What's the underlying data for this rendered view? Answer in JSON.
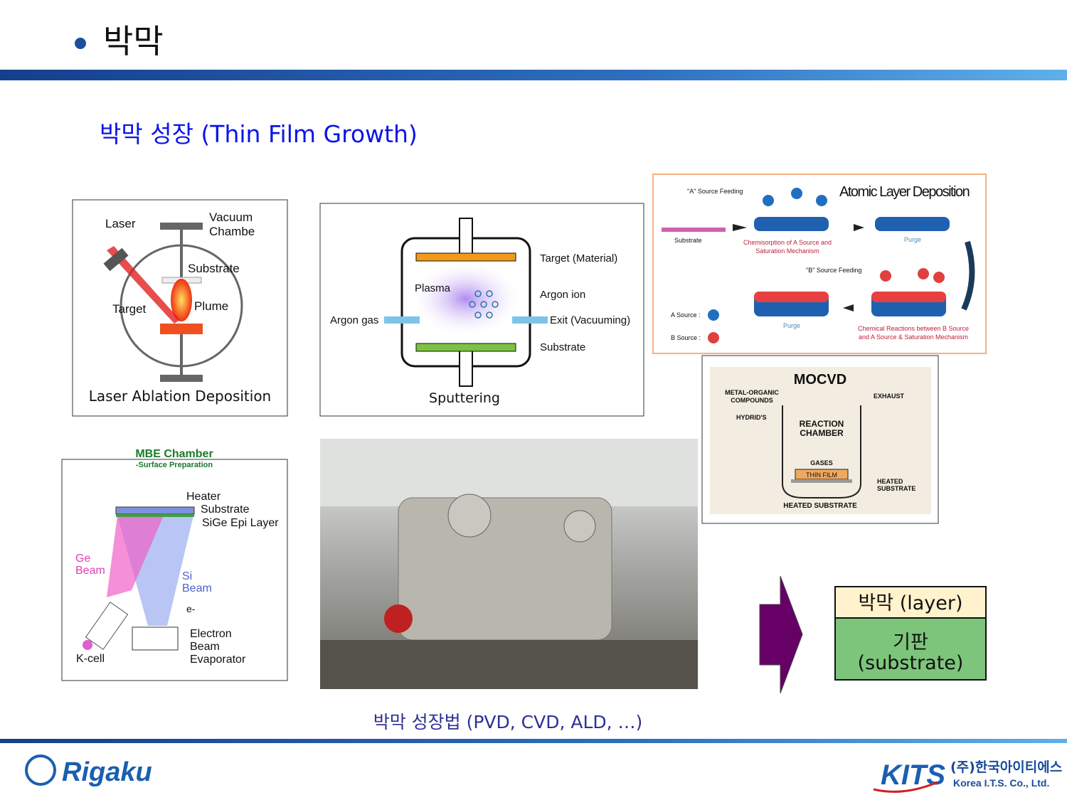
{
  "header": {
    "title": "박막"
  },
  "subtitle": "박막 성장 (Thin Film Growth)",
  "laser_panel": {
    "labels": [
      "Laser",
      "Vacuum",
      "Chambe",
      "Substrate",
      "Plume",
      "Target"
    ],
    "caption": "Laser Ablation Deposition"
  },
  "sputter_panel": {
    "labels": [
      "Target (Material)",
      "Plasma",
      "Argon ion",
      "Argon gas",
      "Exit (Vacuuming)",
      "Substrate"
    ],
    "caption": "Sputtering"
  },
  "ald_panel": {
    "title": "Atomic Layer Deposition",
    "labels": [
      "\"A\" Source Feeding",
      "Substrate",
      "Chemisorption of A Source and",
      "Saturation Mechanism",
      "Purge",
      "\"B\" Source Feeding",
      "A Source :",
      "B Source :",
      "Purge",
      "Chemical Reactions between B Source",
      "and A Source & Saturation Mechanism"
    ]
  },
  "mocvd_panel": {
    "title": "MOCVD",
    "labels": [
      "METAL-ORGANIC",
      "COMPOUNDS",
      "EXHAUST",
      "HYDRID'S",
      "REACTION",
      "CHAMBER",
      "GASES",
      "THIN FILM",
      "HEATED",
      "SUBSTRATE",
      "HEATED SUBSTRATE"
    ]
  },
  "mbe_panel": {
    "title": "MBE Chamber",
    "subtitle": "-Surface Preparation",
    "labels": [
      "Heater",
      "Substrate",
      "SiGe Epi Layer",
      "Ge",
      "Beam",
      "Si",
      "Beam",
      "e-",
      "Electron",
      "Beam",
      "Evaporator",
      "K-cell"
    ]
  },
  "caption": "박막 성장법 (PVD, CVD, ALD, …)",
  "stack": {
    "layer": "박막 (layer)",
    "substrate": [
      "기판",
      "(substrate)"
    ]
  },
  "footer": {
    "left_logo": "Rigaku",
    "right_logo": "KITS",
    "company_ko": "(주)한국아이티에스",
    "company_en": "Korea I.T.S. Co., Ltd."
  }
}
